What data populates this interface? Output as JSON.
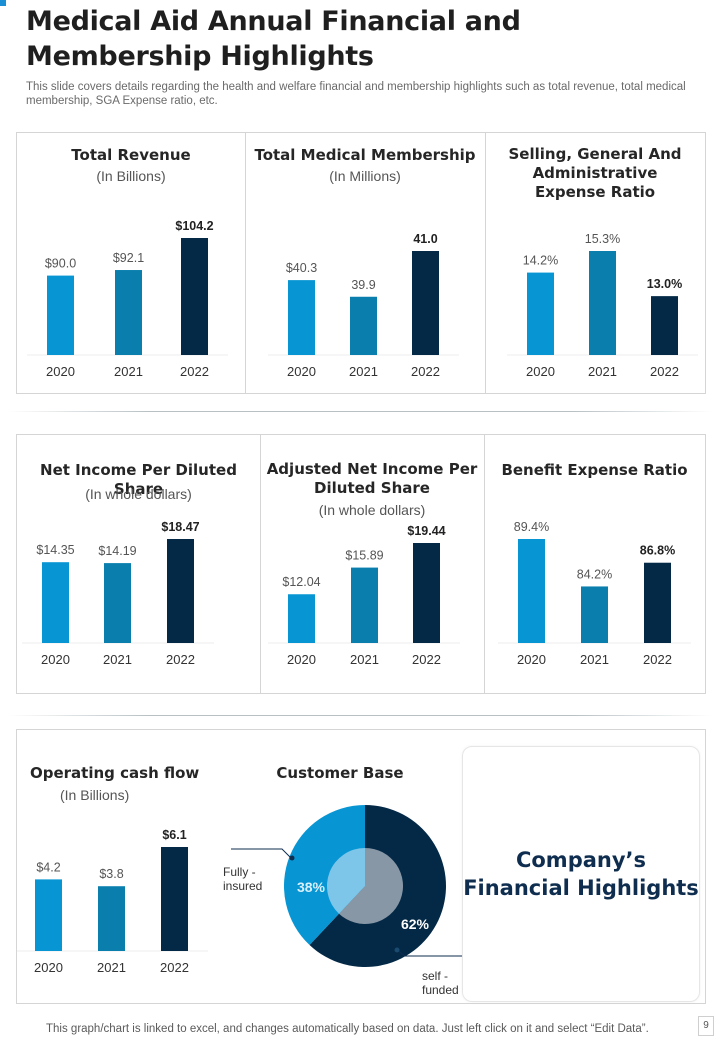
{
  "header": {
    "title": "Medical Aid Annual Financial and Membership Highlights",
    "subtitle": "This slide covers details regarding the health and welfare financial and membership highlights such as total revenue, total medical membership, SGA Expense ratio, etc."
  },
  "colors": {
    "bar_2020": "#0796d3",
    "bar_2021": "#0a7fae",
    "bar_2022": "#042946",
    "donut_fully_insured": "#0796d3",
    "donut_self_funded": "#042946",
    "highlight_text": "#0f2d4f"
  },
  "chart_data": [
    {
      "type": "bar",
      "title": "Total Revenue",
      "unit": "(In Billions)",
      "categories": [
        "2020",
        "2021",
        "2022"
      ],
      "values": [
        90.0,
        92.1,
        104.2
      ],
      "labels": [
        "$90.0",
        "$92.1",
        "$104.2"
      ],
      "xlabel": "",
      "ylabel": "",
      "ylim": [
        60,
        110
      ]
    },
    {
      "type": "bar",
      "title": "Total Medical Membership",
      "unit": "(In Millions)",
      "categories": [
        "2020",
        "2021",
        "2022"
      ],
      "values": [
        40.3,
        39.9,
        41.0
      ],
      "labels": [
        "$40.3",
        "39.9",
        "41.0"
      ],
      "xlabel": "",
      "ylabel": "",
      "ylim": [
        38.5,
        41.5
      ]
    },
    {
      "type": "bar",
      "title": "Selling, General And Administrative Expense Ratio",
      "unit": "",
      "categories": [
        "2020",
        "2021",
        "2022"
      ],
      "values": [
        14.2,
        15.3,
        13.0
      ],
      "labels": [
        "14.2%",
        "15.3%",
        "13.0%"
      ],
      "xlabel": "",
      "ylabel": "",
      "ylim": [
        10,
        16
      ]
    },
    {
      "type": "bar",
      "title": "Net Income Per Diluted Share",
      "unit": "(In whole dollars)",
      "categories": [
        "2020",
        "2021",
        "2022"
      ],
      "values": [
        14.35,
        14.19,
        18.47
      ],
      "labels": [
        "$14.35",
        "$14.19",
        "$18.47"
      ],
      "xlabel": "",
      "ylabel": "",
      "ylim": [
        0,
        20
      ]
    },
    {
      "type": "bar",
      "title": "Adjusted Net Income Per Diluted Share",
      "unit": "(In whole dollars)",
      "categories": [
        "2020",
        "2021",
        "2022"
      ],
      "values": [
        12.04,
        15.89,
        19.44
      ],
      "labels": [
        "$12.04",
        "$15.89",
        "$19.44"
      ],
      "xlabel": "",
      "ylabel": "",
      "ylim": [
        5,
        21
      ]
    },
    {
      "type": "bar",
      "title": "Benefit Expense Ratio",
      "unit": "",
      "categories": [
        "2020",
        "2021",
        "2022"
      ],
      "values": [
        89.4,
        84.2,
        86.8
      ],
      "labels": [
        "89.4%",
        "84.2%",
        "86.8%"
      ],
      "xlabel": "",
      "ylabel": "",
      "ylim": [
        78,
        90
      ]
    },
    {
      "type": "bar",
      "title": "Operating cash flow",
      "unit": "(In Billions)",
      "categories": [
        "2020",
        "2021",
        "2022"
      ],
      "values": [
        4.2,
        3.8,
        6.1
      ],
      "labels": [
        "$4.2",
        "$3.8",
        "$6.1"
      ],
      "xlabel": "",
      "ylabel": "",
      "ylim": [
        0,
        7
      ]
    },
    {
      "type": "pie",
      "title": "Customer Base",
      "categories": [
        "Fully - insured",
        "self - funded"
      ],
      "values": [
        38,
        62
      ],
      "labels": [
        "38%",
        "62%"
      ],
      "legend": "callouts"
    }
  ],
  "highlight_card": {
    "line1": "Company’s",
    "line2": "Financial Highlights"
  },
  "footer": {
    "note": "This graph/chart is linked to excel,  and changes automatically based on data. Just left click on it and select “Edit Data”.",
    "page_number": "9"
  }
}
